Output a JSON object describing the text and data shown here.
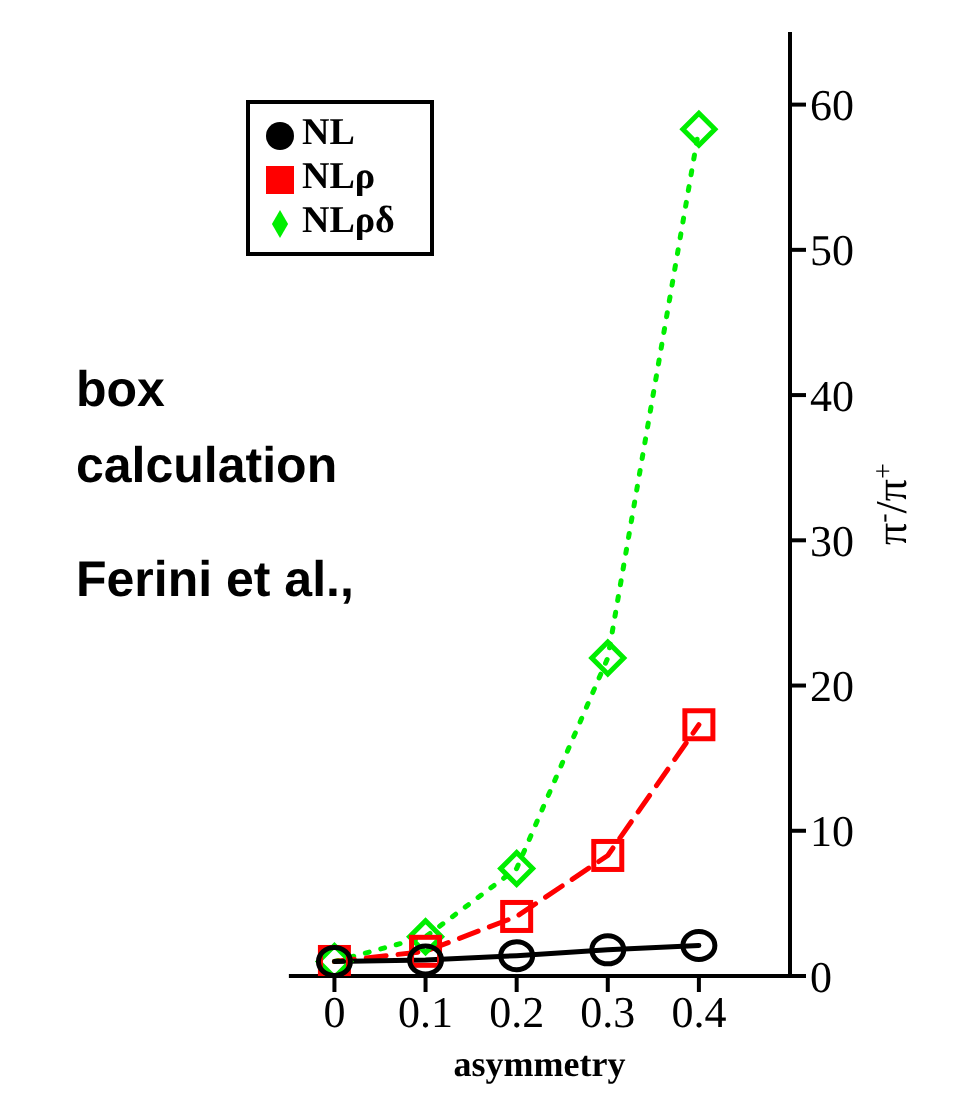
{
  "chart_data": {
    "type": "line",
    "xlabel": "asymmetry",
    "y2label": "π$^{-}$/π$^{+}$",
    "x": [
      0,
      0.1,
      0.2,
      0.3,
      0.4
    ],
    "series": [
      {
        "name": "NL",
        "color": "#000000",
        "marker": "circle",
        "line_style": "solid",
        "axis": "y2",
        "values": [
          1,
          1.1,
          1.4,
          1.8,
          2.1
        ]
      },
      {
        "name": "NLρ",
        "color": "#ff0000",
        "marker": "square",
        "line_style": "dashed",
        "axis": "y2",
        "values": [
          1,
          1.7,
          4.1,
          8.3,
          17.3
        ]
      },
      {
        "name": "NLρδ",
        "color": "#00ee00",
        "marker": "diamond",
        "line_style": "dotted",
        "axis": "y2",
        "values": [
          1,
          2.7,
          7.4,
          21.9,
          58.3
        ]
      }
    ],
    "xlim": [
      -0.05,
      0.5
    ],
    "xticks": [
      0,
      0.1,
      0.2,
      0.3,
      0.4
    ],
    "y2lim": [
      0,
      65
    ],
    "y2ticks": [
      0,
      10,
      20,
      30,
      40,
      50,
      60
    ],
    "grid": false,
    "legend": "top left",
    "annotations": [
      "box calculation",
      "Ferini et al.,"
    ]
  }
}
